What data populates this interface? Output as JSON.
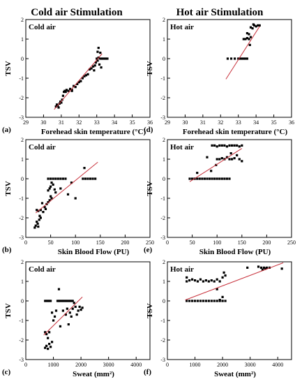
{
  "columns": [
    "Cold air Stimulation",
    "Hot air Stimulation"
  ],
  "chart_data": [
    {
      "id": "a",
      "panel_label": "(a)",
      "type": "scatter",
      "inset_label": "Cold air",
      "xlabel": "Forehead skin temperature (°C)",
      "ylabel": "TSV",
      "xlim": [
        29,
        36
      ],
      "ylim": [
        -3,
        2
      ],
      "xticks": [
        29,
        30,
        31,
        32,
        33,
        34,
        35,
        36
      ],
      "xtick_labels": [
        "29",
        "30",
        "31",
        "32",
        "33",
        "34",
        "35",
        "36"
      ],
      "yticks": [
        -3,
        -2,
        -1,
        0,
        1,
        2
      ],
      "ytick_labels": [
        "-3",
        "-2",
        "-1",
        "0",
        "1",
        "2"
      ],
      "fit": {
        "x": [
          30.6,
          33.3
        ],
        "y": [
          -2.6,
          0.25
        ]
      },
      "points": [
        [
          30.7,
          -2.45
        ],
        [
          30.75,
          -2.35
        ],
        [
          30.8,
          -2.4
        ],
        [
          30.85,
          -2.5
        ],
        [
          30.9,
          -2.3
        ],
        [
          30.95,
          -2.2
        ],
        [
          31.0,
          -2.25
        ],
        [
          31.05,
          -2.1
        ],
        [
          31.1,
          -1.9
        ],
        [
          31.15,
          -1.7
        ],
        [
          31.2,
          -1.65
        ],
        [
          31.3,
          -1.6
        ],
        [
          31.4,
          -1.65
        ],
        [
          31.5,
          -1.55
        ],
        [
          31.6,
          -1.6
        ],
        [
          31.7,
          -1.4
        ],
        [
          31.8,
          -1.45
        ],
        [
          31.9,
          -1.3
        ],
        [
          32.0,
          -1.2
        ],
        [
          32.1,
          -1.15
        ],
        [
          32.2,
          -1.0
        ],
        [
          32.3,
          -0.9
        ],
        [
          32.5,
          -0.8
        ],
        [
          32.6,
          -0.55
        ],
        [
          32.7,
          -0.5
        ],
        [
          32.8,
          -0.4
        ],
        [
          32.85,
          -0.6
        ],
        [
          32.9,
          -0.35
        ],
        [
          32.95,
          -0.2
        ],
        [
          33.0,
          0.0
        ],
        [
          33.05,
          -0.1
        ],
        [
          33.1,
          0.05
        ],
        [
          33.15,
          -0.3
        ],
        [
          33.2,
          0.0
        ],
        [
          33.3,
          0.0
        ],
        [
          33.4,
          0.0
        ],
        [
          33.5,
          0.0
        ],
        [
          33.6,
          0.0
        ],
        [
          33.2,
          0.3
        ],
        [
          33.1,
          0.55
        ],
        [
          33.05,
          0.35
        ],
        [
          33.25,
          -0.45
        ],
        [
          32.4,
          -0.85
        ],
        [
          31.6,
          -1.65
        ],
        [
          31.25,
          -1.7
        ]
      ]
    },
    {
      "id": "d",
      "panel_label": "(d)",
      "type": "scatter",
      "inset_label": "Hot air",
      "xlabel": "Forehead skin temperature (°C)",
      "ylabel": "TSV",
      "xlim": [
        29,
        36
      ],
      "ylim": [
        -3,
        2
      ],
      "xticks": [
        29,
        30,
        31,
        32,
        33,
        34,
        35,
        36
      ],
      "xtick_labels": [
        "29",
        "30",
        "31",
        "32",
        "33",
        "34",
        "35",
        "36"
      ],
      "yticks": [
        -3,
        -2,
        -1,
        0,
        1,
        2
      ],
      "ytick_labels": [
        "-3",
        "-2",
        "-1",
        "0",
        "1",
        "2"
      ],
      "fit": {
        "x": [
          32.3,
          34.2
        ],
        "y": [
          -1.05,
          1.65
        ]
      },
      "points": [
        [
          32.4,
          0.0
        ],
        [
          32.6,
          0.0
        ],
        [
          32.8,
          0.0
        ],
        [
          33.0,
          0.0
        ],
        [
          33.1,
          0.0
        ],
        [
          33.2,
          0.0
        ],
        [
          33.3,
          0.0
        ],
        [
          33.4,
          0.0
        ],
        [
          33.5,
          0.0
        ],
        [
          33.3,
          1.0
        ],
        [
          33.4,
          1.0
        ],
        [
          33.5,
          1.05
        ],
        [
          33.6,
          1.0
        ],
        [
          33.7,
          1.1
        ],
        [
          33.5,
          1.3
        ],
        [
          33.6,
          1.25
        ],
        [
          33.7,
          1.6
        ],
        [
          33.8,
          1.55
        ],
        [
          33.9,
          1.7
        ],
        [
          34.0,
          1.65
        ],
        [
          34.1,
          1.7
        ],
        [
          34.2,
          1.7
        ],
        [
          33.85,
          1.75
        ],
        [
          33.65,
          0.7
        ]
      ]
    },
    {
      "id": "b",
      "panel_label": "(b)",
      "type": "scatter",
      "inset_label": "Cold air",
      "xlabel": "Skin Blood Flow (PU)",
      "ylabel": "TSV",
      "xlim": [
        0,
        250
      ],
      "ylim": [
        -3,
        2
      ],
      "xticks": [
        0,
        50,
        100,
        150,
        200,
        250
      ],
      "xtick_labels": [
        "0",
        "50",
        "100",
        "150",
        "200",
        "250"
      ],
      "yticks": [
        -3,
        -2,
        -1,
        0,
        1,
        2
      ],
      "ytick_labels": [
        "-3",
        "-2",
        "-1",
        "0",
        "1",
        "2"
      ],
      "fit": {
        "x": [
          20,
          145
        ],
        "y": [
          -1.75,
          0.85
        ]
      },
      "points": [
        [
          18,
          -2.5
        ],
        [
          20,
          -2.4
        ],
        [
          22,
          -2.2
        ],
        [
          24,
          -2.3
        ],
        [
          25,
          -2.45
        ],
        [
          27,
          -2.1
        ],
        [
          28,
          -1.9
        ],
        [
          30,
          -2.0
        ],
        [
          22,
          -1.6
        ],
        [
          25,
          -1.65
        ],
        [
          30,
          -1.6
        ],
        [
          35,
          -1.7
        ],
        [
          40,
          -1.55
        ],
        [
          42,
          -1.3
        ],
        [
          45,
          -1.2
        ],
        [
          48,
          -1.1
        ],
        [
          50,
          -0.9
        ],
        [
          52,
          -1.0
        ],
        [
          45,
          -0.6
        ],
        [
          48,
          -0.5
        ],
        [
          50,
          -0.4
        ],
        [
          52,
          -0.2
        ],
        [
          55,
          -0.3
        ],
        [
          58,
          -0.55
        ],
        [
          60,
          -0.7
        ],
        [
          45,
          0.0
        ],
        [
          50,
          0.0
        ],
        [
          55,
          0.0
        ],
        [
          60,
          0.0
        ],
        [
          65,
          0.0
        ],
        [
          70,
          0.0
        ],
        [
          75,
          0.0
        ],
        [
          80,
          0.0
        ],
        [
          85,
          -0.8
        ],
        [
          92,
          -0.2
        ],
        [
          100,
          -1.0
        ],
        [
          115,
          0.0
        ],
        [
          120,
          0.0
        ],
        [
          125,
          0.0
        ],
        [
          130,
          0.0
        ],
        [
          135,
          0.0
        ],
        [
          140,
          0.0
        ],
        [
          118,
          0.55
        ],
        [
          70,
          -0.5
        ],
        [
          38,
          -1.45
        ],
        [
          33,
          -1.25
        ]
      ]
    },
    {
      "id": "e",
      "panel_label": "(e)",
      "type": "scatter",
      "inset_label": "Hot air",
      "xlabel": "Skin Blood Flow (PU)",
      "ylabel": "TSV",
      "xlim": [
        0,
        250
      ],
      "ylim": [
        -3,
        2
      ],
      "xticks": [
        0,
        50,
        100,
        150,
        200,
        250
      ],
      "xtick_labels": [
        "0",
        "50",
        "100",
        "150",
        "200",
        "250"
      ],
      "yticks": [
        -3,
        -2,
        -1,
        0,
        1,
        2
      ],
      "ytick_labels": [
        "-3",
        "-2",
        "-1",
        "0",
        "1",
        "2"
      ],
      "fit": {
        "x": [
          45,
          150
        ],
        "y": [
          -0.15,
          1.55
        ]
      },
      "points": [
        [
          45,
          0.0
        ],
        [
          50,
          0.0
        ],
        [
          55,
          0.0
        ],
        [
          60,
          0.0
        ],
        [
          65,
          0.0
        ],
        [
          70,
          0.0
        ],
        [
          75,
          0.0
        ],
        [
          80,
          0.0
        ],
        [
          85,
          0.0
        ],
        [
          90,
          0.0
        ],
        [
          95,
          0.0
        ],
        [
          100,
          0.0
        ],
        [
          105,
          0.0
        ],
        [
          110,
          0.0
        ],
        [
          115,
          0.0
        ],
        [
          120,
          0.0
        ],
        [
          125,
          0.0
        ],
        [
          60,
          0.3
        ],
        [
          80,
          1.1
        ],
        [
          90,
          1.7
        ],
        [
          95,
          1.7
        ],
        [
          100,
          1.65
        ],
        [
          105,
          1.7
        ],
        [
          110,
          1.7
        ],
        [
          115,
          1.7
        ],
        [
          120,
          1.65
        ],
        [
          125,
          1.7
        ],
        [
          130,
          1.7
        ],
        [
          135,
          1.7
        ],
        [
          140,
          1.7
        ],
        [
          145,
          1.65
        ],
        [
          150,
          1.7
        ],
        [
          100,
          1.0
        ],
        [
          105,
          1.0
        ],
        [
          110,
          1.05
        ],
        [
          115,
          1.0
        ],
        [
          120,
          1.1
        ],
        [
          125,
          1.0
        ],
        [
          130,
          1.0
        ],
        [
          135,
          1.05
        ],
        [
          140,
          1.2
        ],
        [
          145,
          1.0
        ],
        [
          150,
          0.9
        ],
        [
          98,
          0.7
        ],
        [
          88,
          0.4
        ],
        [
          128,
          1.3
        ]
      ]
    },
    {
      "id": "c",
      "panel_label": "(c)",
      "type": "scatter",
      "inset_label": "Cold air",
      "xlabel": "Sweat (mm²)",
      "ylabel": "TSV",
      "xlim": [
        0,
        4500
      ],
      "ylim": [
        -3,
        2
      ],
      "xticks": [
        0,
        1000,
        2000,
        3000,
        4000
      ],
      "xtick_labels": [
        "0",
        "1000",
        "2000",
        "3000",
        "4000"
      ],
      "yticks": [
        -3,
        -2,
        -1,
        0,
        1,
        2
      ],
      "ytick_labels": [
        "-3",
        "-2",
        "-1",
        "0",
        "1",
        "2"
      ],
      "fit": {
        "x": [
          650,
          2050
        ],
        "y": [
          -1.75,
          0.2
        ]
      },
      "points": [
        [
          700,
          -2.4
        ],
        [
          750,
          -2.3
        ],
        [
          800,
          -2.45
        ],
        [
          850,
          -2.2
        ],
        [
          900,
          -2.35
        ],
        [
          950,
          -2.1
        ],
        [
          700,
          -1.6
        ],
        [
          750,
          -1.7
        ],
        [
          800,
          -1.9
        ],
        [
          850,
          -1.6
        ],
        [
          700,
          0.0
        ],
        [
          750,
          0.0
        ],
        [
          800,
          0.0
        ],
        [
          850,
          0.0
        ],
        [
          900,
          0.0
        ],
        [
          950,
          -0.6
        ],
        [
          1000,
          -1.0
        ],
        [
          1050,
          -0.8
        ],
        [
          1100,
          -0.5
        ],
        [
          1150,
          0.0
        ],
        [
          1200,
          0.0
        ],
        [
          1250,
          0.0
        ],
        [
          1300,
          0.0
        ],
        [
          1350,
          0.0
        ],
        [
          1400,
          0.0
        ],
        [
          1450,
          0.0
        ],
        [
          1500,
          0.0
        ],
        [
          1550,
          0.0
        ],
        [
          1600,
          0.0
        ],
        [
          1650,
          0.0
        ],
        [
          1700,
          0.0
        ],
        [
          1200,
          0.6
        ],
        [
          1350,
          -0.5
        ],
        [
          1450,
          -0.7
        ],
        [
          1500,
          -0.4
        ],
        [
          1550,
          -1.2
        ],
        [
          1600,
          -0.6
        ],
        [
          1700,
          -0.4
        ],
        [
          1750,
          -0.1
        ],
        [
          1800,
          -0.3
        ],
        [
          1850,
          -0.7
        ],
        [
          1900,
          -0.5
        ],
        [
          1950,
          -0.3
        ],
        [
          2000,
          -0.45
        ],
        [
          2050,
          -0.35
        ],
        [
          1650,
          -0.8
        ],
        [
          1250,
          -1.3
        ]
      ]
    },
    {
      "id": "f",
      "panel_label": "(f)",
      "type": "scatter",
      "inset_label": "Hot air",
      "xlabel": "Sweat (mm²)",
      "ylabel": "TSV",
      "xlim": [
        0,
        4500
      ],
      "ylim": [
        -3,
        2
      ],
      "xticks": [
        0,
        1000,
        2000,
        3000,
        4000
      ],
      "xtick_labels": [
        "0",
        "1000",
        "2000",
        "3000",
        "4000"
      ],
      "yticks": [
        -3,
        -2,
        -1,
        0,
        1,
        2
      ],
      "ytick_labels": [
        "-3",
        "-2",
        "-1",
        "0",
        "1",
        "2"
      ],
      "fit": {
        "x": [
          650,
          4200
        ],
        "y": [
          0.05,
          1.95
        ]
      },
      "points": [
        [
          700,
          0.0
        ],
        [
          800,
          0.0
        ],
        [
          900,
          0.0
        ],
        [
          1000,
          0.0
        ],
        [
          1100,
          0.0
        ],
        [
          1200,
          0.0
        ],
        [
          1300,
          0.0
        ],
        [
          1400,
          0.0
        ],
        [
          1500,
          0.0
        ],
        [
          1600,
          0.0
        ],
        [
          1700,
          0.0
        ],
        [
          1800,
          0.0
        ],
        [
          1900,
          0.0
        ],
        [
          2000,
          0.0
        ],
        [
          2100,
          0.0
        ],
        [
          700,
          1.2
        ],
        [
          800,
          1.05
        ],
        [
          900,
          1.1
        ],
        [
          1000,
          1.05
        ],
        [
          1100,
          1.0
        ],
        [
          1200,
          1.1
        ],
        [
          1300,
          1.0
        ],
        [
          1400,
          1.05
        ],
        [
          1500,
          1.0
        ],
        [
          1600,
          1.05
        ],
        [
          1700,
          1.0
        ],
        [
          1800,
          1.1
        ],
        [
          1900,
          1.0
        ],
        [
          2000,
          1.2
        ],
        [
          2050,
          1.45
        ],
        [
          2100,
          1.3
        ],
        [
          1800,
          0.6
        ],
        [
          2900,
          1.7
        ],
        [
          3300,
          1.75
        ],
        [
          3400,
          1.7
        ],
        [
          3450,
          1.6
        ],
        [
          3500,
          1.7
        ],
        [
          3550,
          1.65
        ],
        [
          3600,
          1.7
        ],
        [
          3700,
          1.7
        ],
        [
          4150,
          1.65
        ],
        [
          700,
          1.0
        ],
        [
          1900,
          0.05
        ],
        [
          2000,
          0.2
        ]
      ]
    }
  ]
}
